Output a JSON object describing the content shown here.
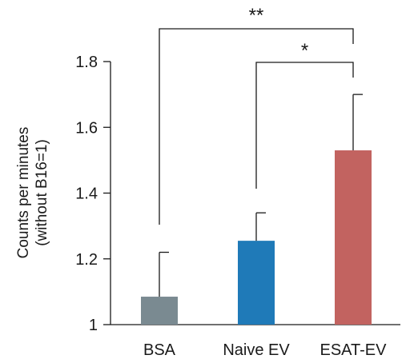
{
  "chart_data": {
    "type": "bar",
    "categories": [
      "BSA",
      "Naive EV",
      "ESAT-EV"
    ],
    "values": [
      1.085,
      1.255,
      1.53
    ],
    "error_upper": [
      1.22,
      1.34,
      1.7
    ],
    "colors": [
      "#7a8a91",
      "#1f7ab8",
      "#c26360"
    ],
    "ylabel_line1": "Counts per minutes",
    "ylabel_line2": "(without B16=1)",
    "ylim": [
      1.0,
      1.8
    ],
    "yticks": [
      1,
      1.2,
      1.4,
      1.6,
      1.8
    ],
    "ytick_labels": [
      "1",
      "1.2",
      "1.4",
      "1.6",
      "1.8"
    ],
    "grid": false,
    "significance": [
      {
        "from": "BSA",
        "to": "ESAT-EV",
        "label": "**"
      },
      {
        "from": "Naive EV",
        "to": "ESAT-EV",
        "label": "*"
      }
    ]
  }
}
